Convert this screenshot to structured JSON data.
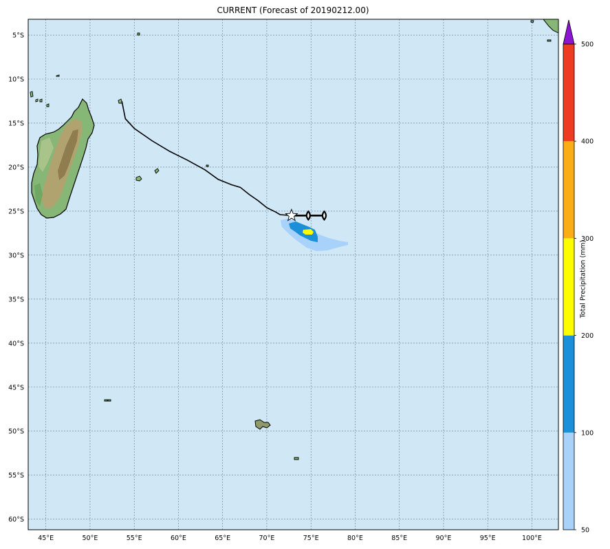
{
  "title": "CURRENT (Forecast of 20190212.00)",
  "map": {
    "lon_range": [
      43,
      103
    ],
    "lat_range": [
      -61.2,
      -3.2
    ],
    "lon_ticks": [
      "45°E",
      "50°E",
      "55°E",
      "60°E",
      "65°E",
      "70°E",
      "75°E",
      "80°E",
      "85°E",
      "90°E",
      "95°E",
      "100°E"
    ],
    "lat_ticks": [
      "5°S",
      "10°S",
      "15°S",
      "20°S",
      "25°S",
      "30°S",
      "35°S",
      "40°S",
      "45°S",
      "50°S",
      "55°S",
      "60°S"
    ],
    "gridlines": true,
    "ocean_color": "#d0e7f6",
    "track_color": "#000000",
    "storm_track": [
      {
        "lon": 53.6,
        "lat": -12.5
      },
      {
        "lon": 54.0,
        "lat": -14.5
      },
      {
        "lon": 55.0,
        "lat": -15.6
      },
      {
        "lon": 57.0,
        "lat": -17.0
      },
      {
        "lon": 59.0,
        "lat": -18.2
      },
      {
        "lon": 61.0,
        "lat": -19.2
      },
      {
        "lon": 63.0,
        "lat": -20.3
      },
      {
        "lon": 64.5,
        "lat": -21.4
      },
      {
        "lon": 66.0,
        "lat": -22.0
      },
      {
        "lon": 67.0,
        "lat": -22.3
      },
      {
        "lon": 68.0,
        "lat": -23.1
      },
      {
        "lon": 69.0,
        "lat": -23.8
      },
      {
        "lon": 70.0,
        "lat": -24.6
      },
      {
        "lon": 71.0,
        "lat": -25.1
      },
      {
        "lon": 71.5,
        "lat": -25.4
      },
      {
        "lon": 72.8,
        "lat": -25.5
      }
    ],
    "current_position": {
      "lon": 72.8,
      "lat": -25.5
    },
    "forecast_track": [
      {
        "lon": 72.8,
        "lat": -25.5
      },
      {
        "lon": 74.7,
        "lat": -25.5
      },
      {
        "lon": 76.5,
        "lat": -25.5
      }
    ]
  },
  "colorbar": {
    "label": "Total Precipitation (mm)",
    "ticks": [
      "500",
      "400",
      "300",
      "200",
      "100",
      "50"
    ],
    "levels": [
      50,
      100,
      200,
      300,
      400,
      500
    ],
    "colors": [
      "#a9d2fb",
      "#1b8fd8",
      "#fdfd00",
      "#fbad16",
      "#ee3b22"
    ],
    "extend_color": "#8c14d3"
  }
}
